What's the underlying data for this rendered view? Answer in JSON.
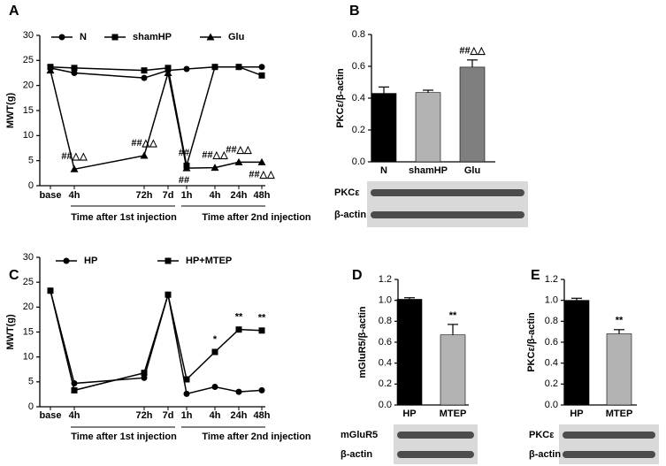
{
  "chart_data": [
    {
      "type": "line",
      "label": "A",
      "ylabel": "MWT(g)",
      "categories": [
        "base",
        "4h",
        "72h",
        "7d",
        "1h",
        "4h",
        "24h",
        "48h"
      ],
      "xlabels": [
        "Time after 1st injection",
        "Time after 2nd injection"
      ],
      "ylim": [
        0,
        30
      ],
      "yticks": [
        0,
        5,
        10,
        15,
        20,
        25,
        30
      ],
      "series": [
        {
          "name": "N",
          "color": "#000000",
          "marker": "circle",
          "values": [
            23.5,
            22.5,
            21.5,
            23,
            23.3,
            23.7,
            23.7,
            23.7
          ],
          "significance": [
            null,
            null,
            null,
            null,
            null,
            null,
            null,
            null
          ]
        },
        {
          "name": "shamHP",
          "color": "#000000",
          "marker": "square",
          "values": [
            23.7,
            23.5,
            23,
            23.5,
            4,
            23.7,
            23.7,
            22
          ],
          "significance": [
            null,
            null,
            null,
            null,
            "##",
            null,
            null,
            null
          ]
        },
        {
          "name": "Glu",
          "color": "#000000",
          "marker": "triangle",
          "values": [
            23,
            3.3,
            6,
            22.5,
            3.5,
            3.6,
            4.7,
            4.7
          ],
          "significance": [
            null,
            "##△△",
            "##△△",
            null,
            "##",
            "##△△",
            "##△△",
            "##△△"
          ]
        }
      ]
    },
    {
      "type": "bar",
      "label": "B",
      "ylabel": "PKCε/β-actin",
      "categories": [
        "N",
        "shamHP",
        "Glu"
      ],
      "values": [
        0.43,
        0.435,
        0.595
      ],
      "errors": [
        0.04,
        0.015,
        0.045
      ],
      "colors": [
        "#000000",
        "#b3b3b3",
        "#7f7f7f"
      ],
      "significance": [
        null,
        null,
        "##△△"
      ],
      "ylim": [
        0,
        0.8
      ],
      "yticks": [
        {
          "value": 0,
          "label": "0.0"
        },
        0.2,
        0.4,
        0.6,
        0.8
      ],
      "blot_labels": [
        "PKCε",
        "β-actin"
      ]
    },
    {
      "type": "line",
      "label": "C",
      "ylabel": "MWT(g)",
      "categories": [
        "base",
        "4h",
        "72h",
        "7d",
        "1h",
        "4h",
        "24h",
        "48h"
      ],
      "xlabels": [
        "Time after 1st injection",
        "Time after 2nd injection"
      ],
      "ylim": [
        0,
        30
      ],
      "yticks": [
        0,
        5,
        10,
        15,
        20,
        25,
        30
      ],
      "series": [
        {
          "name": "HP",
          "color": "#000000",
          "marker": "circle",
          "values": [
            23.3,
            4.7,
            5.8,
            22.5,
            2.6,
            4,
            3,
            3.3
          ],
          "significance": [
            null,
            null,
            null,
            null,
            null,
            null,
            null,
            null
          ]
        },
        {
          "name": "HP+MTEP",
          "color": "#000000",
          "marker": "square",
          "values": [
            23.3,
            3.3,
            6.8,
            22.5,
            5.5,
            11,
            15.5,
            15.3
          ],
          "significance": [
            null,
            null,
            null,
            null,
            null,
            "*",
            "**",
            "**"
          ]
        }
      ]
    },
    {
      "type": "bar",
      "label": "D",
      "ylabel": "mGluR5/β-actin",
      "categories": [
        "HP",
        "MTEP"
      ],
      "values": [
        1.01,
        0.67
      ],
      "errors": [
        0.015,
        0.1
      ],
      "colors": [
        "#000000",
        "#b3b3b3"
      ],
      "significance": [
        null,
        "**"
      ],
      "ylim": [
        0,
        1.2
      ],
      "yticks": [
        {
          "value": 0,
          "label": "0.0"
        },
        0.2,
        0.4,
        0.6,
        0.8,
        {
          "value": 1,
          "label": "1.0"
        },
        1.2
      ],
      "blot_labels": [
        "mGluR5",
        "β-actin"
      ]
    },
    {
      "type": "bar",
      "label": "E",
      "ylabel": "PKCε/β-actin",
      "categories": [
        "HP",
        "MTEP"
      ],
      "values": [
        1.0,
        0.68
      ],
      "errors": [
        0.02,
        0.04
      ],
      "colors": [
        "#000000",
        "#b3b3b3"
      ],
      "significance": [
        null,
        "**"
      ],
      "ylim": [
        0,
        1.2
      ],
      "yticks": [
        {
          "value": 0,
          "label": "0.0"
        },
        0.2,
        0.4,
        0.6,
        0.8,
        {
          "value": 1,
          "label": "1.0"
        },
        1.2
      ],
      "blot_labels": [
        "PKCε",
        "β-actin"
      ]
    }
  ]
}
